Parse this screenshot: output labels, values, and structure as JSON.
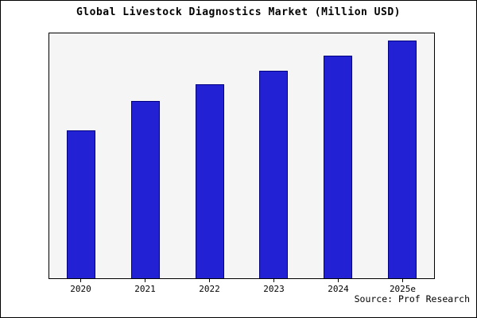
{
  "title": "Global Livestock Diagnostics Market (Million USD)",
  "source": "Source: Prof Research",
  "colors": {
    "bar_fill": "#2222d4",
    "bar_border": "#000080",
    "plot_bg": "#f5f5f5",
    "frame": "#000000"
  },
  "chart_data": {
    "type": "bar",
    "title": "Global Livestock Diagnostics Market (Million USD)",
    "categories": [
      "2020",
      "2021",
      "2022",
      "2023",
      "2024",
      "2025e"
    ],
    "values": [
      62.3,
      74.7,
      81.7,
      87.3,
      93.7,
      100
    ],
    "xlabel": "",
    "ylabel": "",
    "ylim": [
      0,
      103
    ],
    "grid": false,
    "legend": false,
    "source_label": "Source: Prof Research"
  }
}
